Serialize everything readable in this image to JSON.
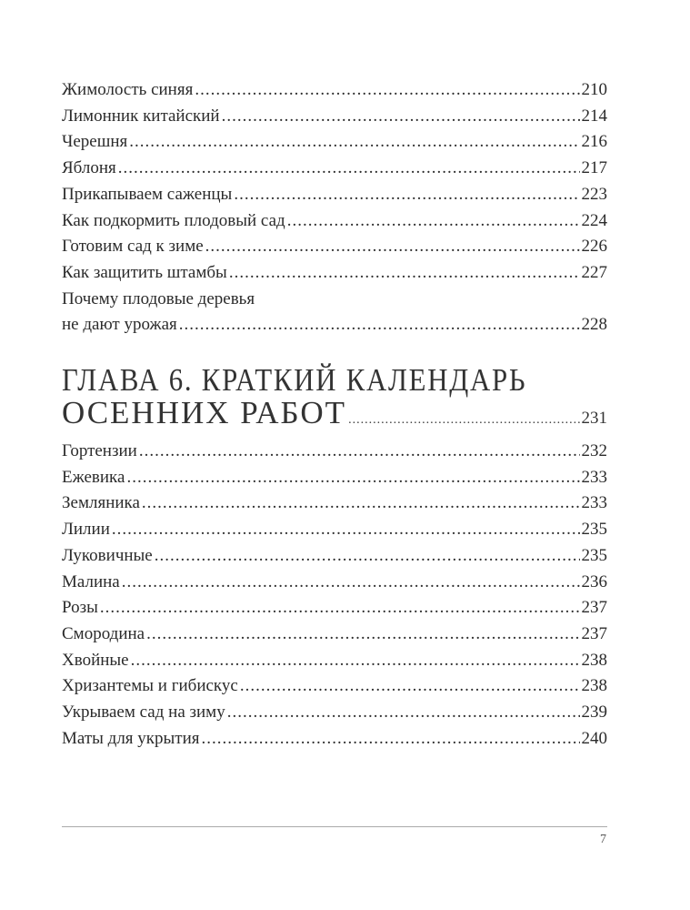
{
  "section1": [
    {
      "title": "Жимолость синяя",
      "page": "210"
    },
    {
      "title": "Лимонник китайский",
      "page": "214"
    },
    {
      "title": "Черешня",
      "page": "216"
    },
    {
      "title": "Яблоня",
      "page": "217"
    },
    {
      "title": "Прикапываем саженцы",
      "page": "223"
    },
    {
      "title": "Как подкормить плодовый сад",
      "page": "224"
    },
    {
      "title": "Готовим сад к зиме",
      "page": "226"
    },
    {
      "title": "Как защитить штамбы",
      "page": "227"
    }
  ],
  "multiline_entry": {
    "line1": "Почему плодовые деревья",
    "line2": "не дают урожая",
    "page": "228"
  },
  "chapter": {
    "line1": "ГЛАВА 6. КРАТКИЙ КАЛЕНДАРЬ",
    "line2": "ОСЕННИХ РАБОТ",
    "page": "231"
  },
  "section2": [
    {
      "title": "Гортензии",
      "page": "232"
    },
    {
      "title": "Ежевика",
      "page": "233"
    },
    {
      "title": "Земляника",
      "page": "233"
    },
    {
      "title": "Лилии",
      "page": "235"
    },
    {
      "title": "Луковичные",
      "page": "235"
    },
    {
      "title": "Малина",
      "page": "236"
    },
    {
      "title": "Розы",
      "page": "237"
    },
    {
      "title": "Смородина",
      "page": "237"
    },
    {
      "title": "Хвойные",
      "page": "238"
    },
    {
      "title": "Хризантемы и гибискус",
      "page": "238"
    },
    {
      "title": "Укрываем сад на зиму",
      "page": "239"
    },
    {
      "title": "Маты для укрытия",
      "page": "240"
    }
  ],
  "footer": {
    "page_number": "7"
  }
}
